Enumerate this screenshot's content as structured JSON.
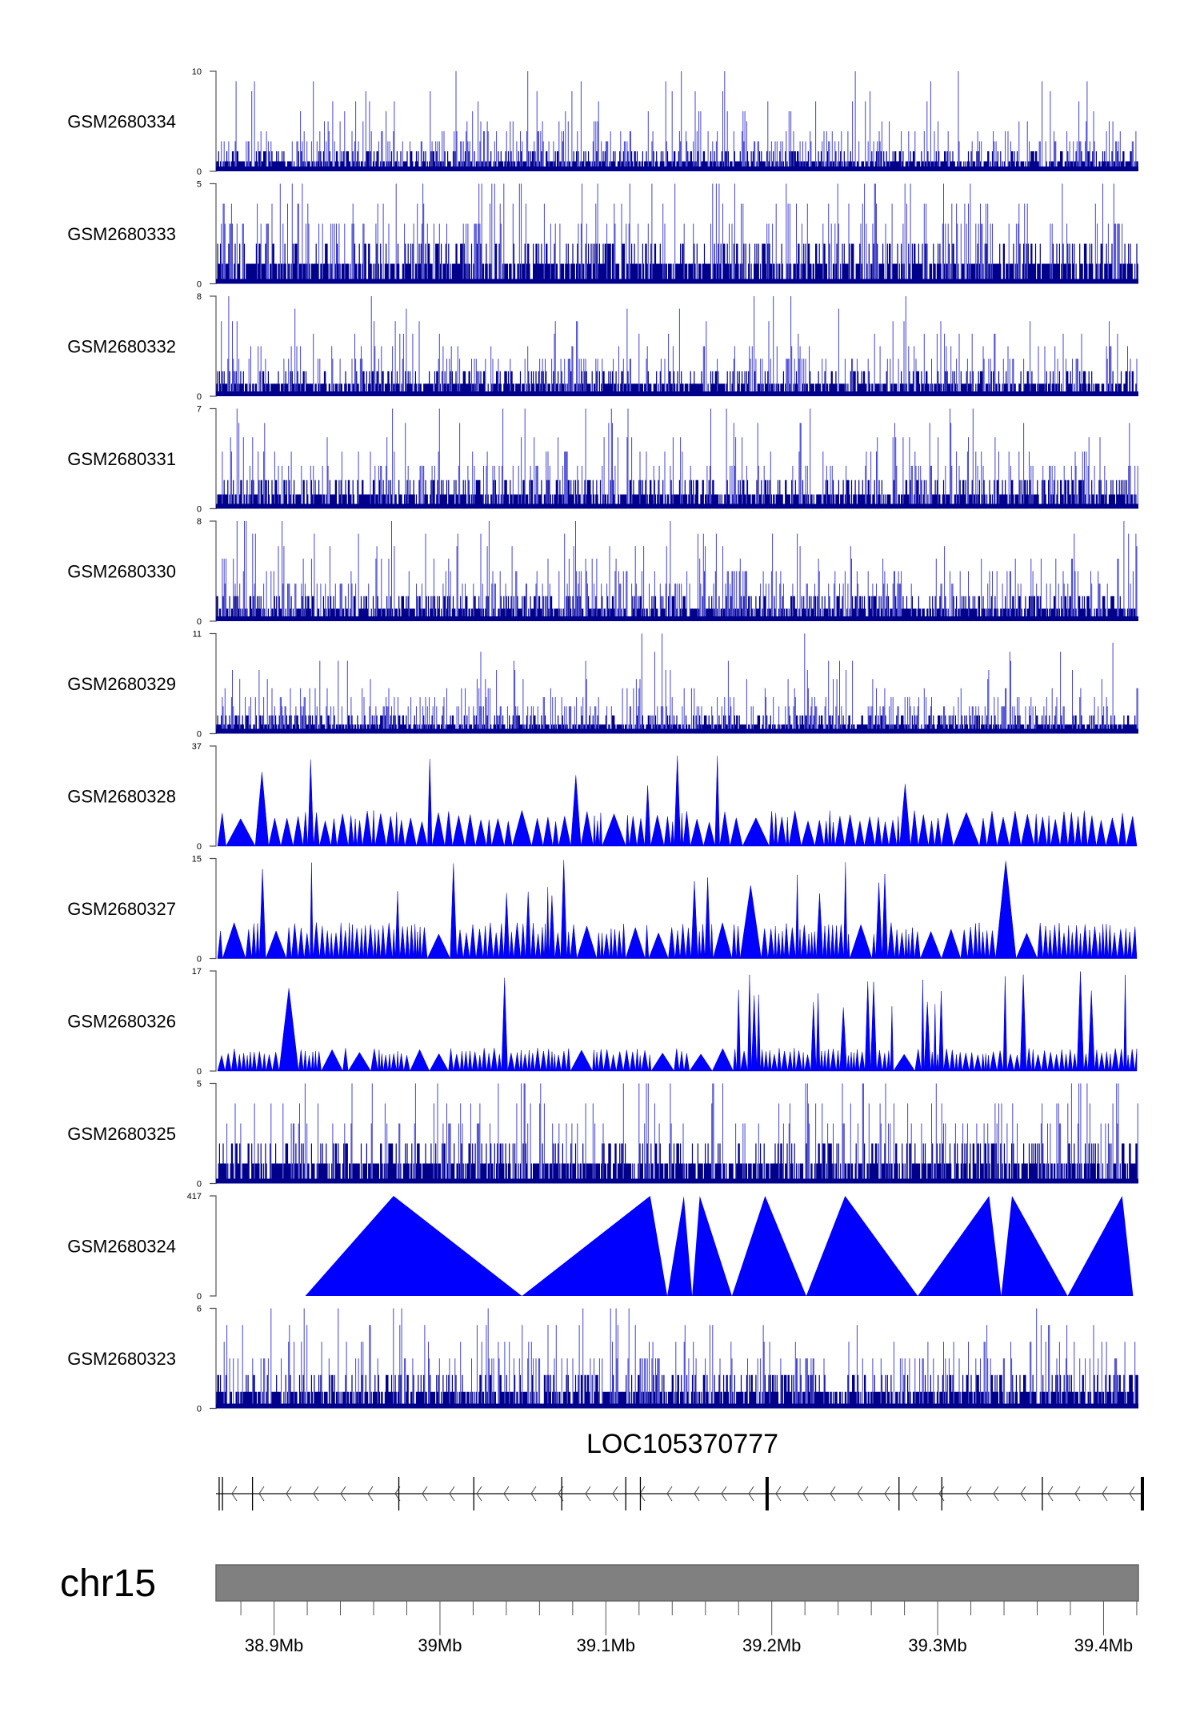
{
  "chart_data": {
    "type": "area",
    "title": "",
    "xlabel": "",
    "ylabel": "",
    "xlim_mb": [
      38.865,
      39.421
    ],
    "chromosome": "chr15",
    "gene": "LOC105370777",
    "gene_strand": "-",
    "gene_exons_mb": [
      38.8669,
      38.8689,
      38.887,
      38.9752,
      39.0204,
      39.0734,
      39.112,
      39.1208,
      39.1972,
      39.2767,
      39.3025,
      39.3631,
      39.4234
    ],
    "x_ticks": [
      {
        "value": 38.9,
        "label": "38.9Mb"
      },
      {
        "value": 39.0,
        "label": "39Mb"
      },
      {
        "value": 39.1,
        "label": "39.1Mb"
      },
      {
        "value": 39.2,
        "label": "39.2Mb"
      },
      {
        "value": 39.3,
        "label": "39.3Mb"
      },
      {
        "value": 39.4,
        "label": "39.4Mb"
      }
    ],
    "tracks": [
      {
        "name": "GSM2680334",
        "ymin": 0,
        "ymax": 10,
        "style": "dense",
        "mean": 1.6
      },
      {
        "name": "GSM2680333",
        "ymin": 0,
        "ymax": 5,
        "style": "dense",
        "mean": 1.2
      },
      {
        "name": "GSM2680332",
        "ymin": 0,
        "ymax": 8,
        "style": "dense",
        "mean": 1.3
      },
      {
        "name": "GSM2680331",
        "ymin": 0,
        "ymax": 7,
        "style": "dense",
        "mean": 1.3
      },
      {
        "name": "GSM2680330",
        "ymin": 0,
        "ymax": 8,
        "style": "dense",
        "mean": 1.5
      },
      {
        "name": "GSM2680329",
        "ymin": 0,
        "ymax": 11,
        "style": "dense",
        "mean": 1.6
      },
      {
        "name": "GSM2680328",
        "ymin": 0,
        "ymax": 37,
        "style": "sparse",
        "mean": 11
      },
      {
        "name": "GSM2680327",
        "ymin": 0,
        "ymax": 15,
        "style": "sparse",
        "mean": 4.5
      },
      {
        "name": "GSM2680326",
        "ymin": 0,
        "ymax": 17,
        "style": "sparse",
        "mean": 3.3
      },
      {
        "name": "GSM2680325",
        "ymin": 0,
        "ymax": 5,
        "style": "dense",
        "mean": 1.1
      },
      {
        "name": "GSM2680324",
        "ymin": 0,
        "ymax": 417,
        "style": "points",
        "points": [
          [
            38.9188,
            0
          ],
          [
            38.972,
            417
          ],
          [
            39.0494,
            0
          ],
          [
            39.1267,
            417
          ],
          [
            39.137,
            0
          ],
          [
            39.147,
            417
          ],
          [
            39.152,
            0
          ],
          [
            39.1566,
            417
          ],
          [
            39.176,
            0
          ],
          [
            39.196,
            417
          ],
          [
            39.2208,
            0
          ],
          [
            39.2442,
            417
          ],
          [
            39.288,
            0
          ],
          [
            39.331,
            417
          ],
          [
            39.3383,
            0
          ],
          [
            39.3448,
            417
          ],
          [
            39.3783,
            0
          ],
          [
            39.4112,
            417
          ],
          [
            39.4178,
            0
          ]
        ]
      },
      {
        "name": "GSM2680323",
        "ymin": 0,
        "ymax": 6,
        "style": "dense",
        "mean": 1.2
      }
    ],
    "colors": {
      "signal_dark": "#00008b",
      "signal": "#0000ff",
      "ideogram": "#808080"
    }
  }
}
